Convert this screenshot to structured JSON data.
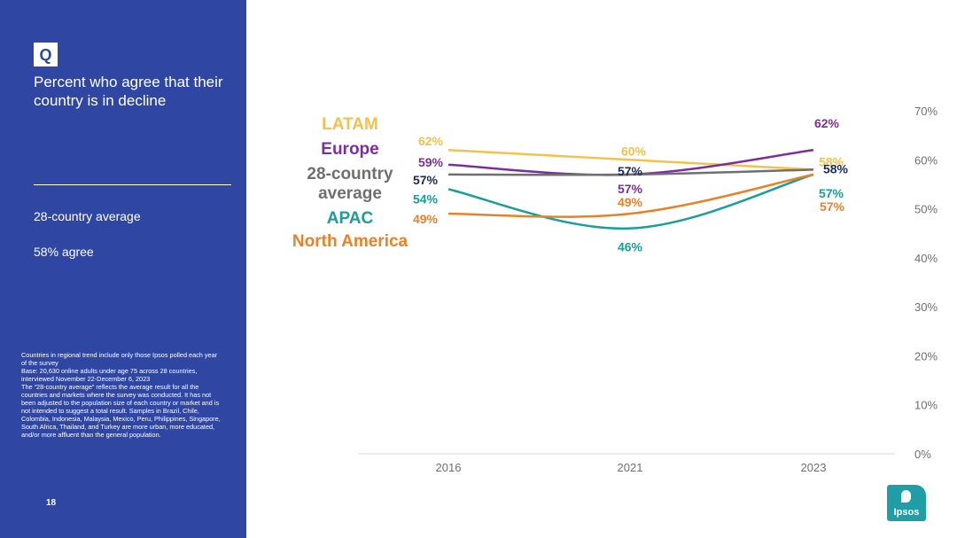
{
  "sidebar": {
    "badge": "Q",
    "question": "Percent who agree that their country is in decline",
    "avg_label": "28-country average",
    "avg_value": "58% agree",
    "footnote": [
      "Countries in regional trend include only those Ipsos polled each year of the survey",
      "Base: 20,630 online adults under age 75 across 28 countries, interviewed November 22-December 6, 2023",
      "The “28-country average” reflects the average result for all the countries and markets where the survey was conducted. It has not been adjusted to the population size of each country or market and is not intended to suggest a total result. Samples in Brazil, Chile, Colombia, Indonesia, Malaysia, Mexico, Peru, Philippines, Singapore, South Africa, Thailand, and Turkey are more urban, more educated, and/or more affluent than the general population."
    ],
    "page_number": "18"
  },
  "logo": {
    "text": "Ipsos",
    "color": "#1f9ea6"
  },
  "legend": [
    {
      "label": "LATAM",
      "color": "#f2c14e"
    },
    {
      "label": "Europe",
      "color": "#7b2f9e"
    },
    {
      "label": "28-country average",
      "color": "#6f6f6f"
    },
    {
      "label": "APAC",
      "color": "#1a9e9a"
    },
    {
      "label": "North America",
      "color": "#e8822a"
    }
  ],
  "chart_data": {
    "type": "line",
    "categories": [
      "2016",
      "2021",
      "2023"
    ],
    "ylim": [
      0,
      70
    ],
    "yticks": [
      "0%",
      "10%",
      "20%",
      "30%",
      "40%",
      "50%",
      "60%",
      "70%"
    ],
    "series": [
      {
        "name": "LATAM",
        "color": "#f2c14e",
        "values": [
          62,
          60,
          58
        ],
        "labels": [
          "62%",
          "60%",
          "58%"
        ]
      },
      {
        "name": "Europe",
        "color": "#7b2f9e",
        "values": [
          59,
          57,
          62
        ],
        "labels": [
          "59%",
          "57%",
          "62%"
        ]
      },
      {
        "name": "28-country average",
        "color": "#6f6f6f",
        "label_color": "#1b2a5c",
        "values": [
          57,
          57,
          58
        ],
        "labels": [
          "57%",
          "57%",
          "58%"
        ]
      },
      {
        "name": "APAC",
        "color": "#1a9e9a",
        "values": [
          54,
          46,
          57
        ],
        "labels": [
          "54%",
          "46%",
          "57%"
        ]
      },
      {
        "name": "North America",
        "color": "#e8822a",
        "values": [
          49,
          49,
          57
        ],
        "labels": [
          "49%",
          "49%",
          "57%"
        ]
      }
    ]
  }
}
